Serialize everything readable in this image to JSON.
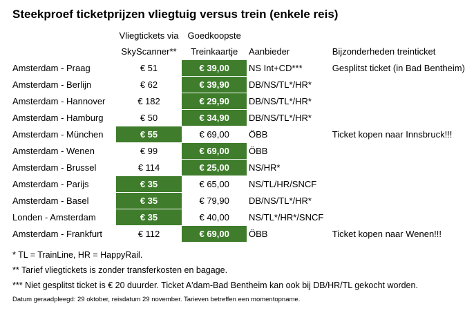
{
  "title": "Steekproef ticketprijzen vliegtuig versus trein (enkele reis)",
  "headers": {
    "route": "",
    "flight_l1": "Vliegtickets via",
    "flight_l2": "SkyScanner**",
    "train_l1": "Goedkoopste",
    "train_l2": "Treinkaartje",
    "provider": "Aanbieder",
    "note": "Bijzonderheden treinticket"
  },
  "rows": [
    {
      "route": "Amsterdam - Praag",
      "flight": "€ 51",
      "train": "€ 39,00",
      "provider": "NS Int+CD***",
      "note": "Gesplitst ticket (in Bad Bentheim)",
      "cheapest": "train"
    },
    {
      "route": "Amsterdam - Berlijn",
      "flight": "€ 62",
      "train": "€ 39,90",
      "provider": "DB/NS/TL*/HR*",
      "note": "",
      "cheapest": "train"
    },
    {
      "route": "Amsterdam - Hannover",
      "flight": "€ 182",
      "train": "€ 29,90",
      "provider": "DB/NS/TL*/HR*",
      "note": "",
      "cheapest": "train"
    },
    {
      "route": "Amsterdam - Hamburg",
      "flight": "€ 50",
      "train": "€ 34,90",
      "provider": "DB/NS/TL*/HR*",
      "note": "",
      "cheapest": "train"
    },
    {
      "route": "Amsterdam - München",
      "flight": "€ 55",
      "train": "€ 69,00",
      "provider": "ÖBB",
      "note": "Ticket kopen naar Innsbruck!!!",
      "cheapest": "flight"
    },
    {
      "route": "Amsterdam - Wenen",
      "flight": "€ 99",
      "train": "€ 69,00",
      "provider": "ÖBB",
      "note": "",
      "cheapest": "train"
    },
    {
      "route": "Amsterdam - Brussel",
      "flight": "€ 114",
      "train": "€ 25,00",
      "provider": "NS/HR*",
      "note": "",
      "cheapest": "train"
    },
    {
      "route": "Amsterdam - Parijs",
      "flight": "€ 35",
      "train": "€ 65,00",
      "provider": "NS/TL/HR/SNCF",
      "note": "",
      "cheapest": "flight"
    },
    {
      "route": "Amsterdam - Basel",
      "flight": "€ 35",
      "train": "€ 79,90",
      "provider": "DB/NS/TL*/HR*",
      "note": "",
      "cheapest": "flight"
    },
    {
      "route": "Londen - Amsterdam",
      "flight": "€ 35",
      "train": "€ 40,00",
      "provider": "NS/TL*/HR*/SNCF",
      "note": "",
      "cheapest": "flight"
    },
    {
      "route": "Amsterdam - Frankfurt",
      "flight": "€ 112",
      "train": "€ 69,00",
      "provider": "ÖBB",
      "note": "Ticket kopen naar Wenen!!!",
      "cheapest": "train"
    }
  ],
  "footnotes": [
    "* TL = TrainLine, HR = HappyRail.",
    "** Tarief vliegtickets is zonder transferkosten en bagage.",
    "*** Niet gesplitst ticket is € 20 duurder. Ticket A'dam-Bad Bentheim kan ook bij DB/HR/TL gekocht worden."
  ],
  "small_note": "Datum geraadpleegd: 29 oktober, reisdatum 29 november. Tarieven betreffen een momentopname.",
  "colors": {
    "highlight": "#3f7d2c",
    "highlight_text": "#ffffff"
  }
}
